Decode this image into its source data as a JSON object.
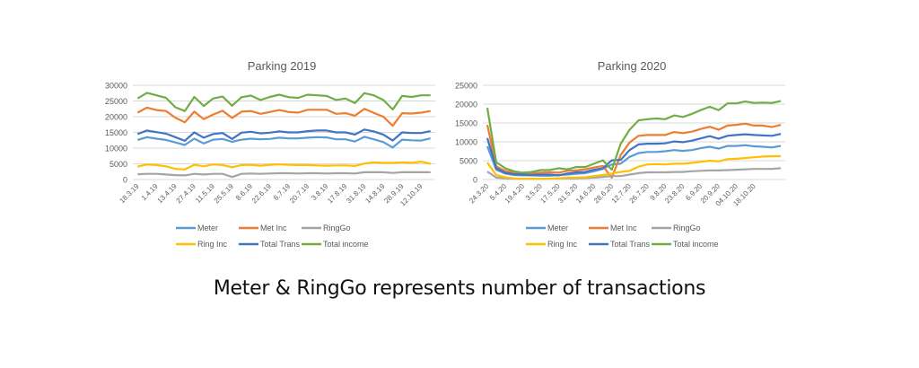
{
  "caption": "Meter & RingGo represents number of transactions",
  "legend_labels": [
    "Meter",
    "Met Inc",
    "RingGo",
    "Ring Inc",
    "Total Trans",
    "Total income"
  ],
  "chart_data": [
    {
      "type": "line",
      "title": "Parking 2019",
      "xlabel": "",
      "ylabel": "",
      "ylim": [
        0,
        30000
      ],
      "yticks": [
        0,
        5000,
        10000,
        15000,
        20000,
        25000,
        30000
      ],
      "grid": true,
      "legend": "bottom",
      "tick_labels": [
        "18.3.19",
        "1.4.19",
        "13.4.19",
        "27.4.19",
        "11.5.19",
        "25.5.19",
        "8.6.19",
        "22.6.19",
        "6.7.19",
        "20.7.19",
        "3.8.19",
        "17.8.19",
        "31.8.19",
        "14.8.19",
        "28.9.19",
        "12.10.19"
      ],
      "series": [
        {
          "name": "Meter",
          "color": "#5B9BD5",
          "values": [
            12600,
            13500,
            13000,
            12600,
            11800,
            11000,
            13000,
            11500,
            12700,
            12900,
            12000,
            12700,
            13000,
            12800,
            12900,
            13300,
            13100,
            13100,
            13300,
            13500,
            13400,
            12800,
            12800,
            12100,
            13600,
            12800,
            11900,
            10200,
            12700,
            12500,
            12400,
            13100
          ]
        },
        {
          "name": "Met Inc",
          "color": "#ED7D31",
          "values": [
            21300,
            22900,
            22100,
            21800,
            19700,
            18200,
            21600,
            19200,
            20700,
            21900,
            19600,
            21600,
            21800,
            20900,
            21500,
            22100,
            21500,
            21300,
            22200,
            22200,
            22200,
            20900,
            21100,
            20300,
            22500,
            21200,
            20000,
            17100,
            21100,
            21000,
            21300,
            21800
          ]
        },
        {
          "name": "RingGo",
          "color": "#A5A5A5",
          "values": [
            1700,
            1800,
            1800,
            1600,
            1400,
            1300,
            1800,
            1600,
            1800,
            1800,
            800,
            1800,
            1900,
            1800,
            1900,
            2000,
            2000,
            1900,
            2000,
            2000,
            1900,
            2000,
            2000,
            1900,
            2300,
            2300,
            2300,
            2100,
            2300,
            2300,
            2300,
            2300
          ]
        },
        {
          "name": "Ring Inc",
          "color": "#FFC000",
          "values": [
            4100,
            4800,
            4600,
            4200,
            3400,
            3200,
            4700,
            4200,
            4800,
            4600,
            3900,
            4600,
            4700,
            4400,
            4700,
            4800,
            4700,
            4600,
            4600,
            4500,
            4400,
            4500,
            4500,
            4300,
            5100,
            5500,
            5300,
            5300,
            5500,
            5300,
            5700,
            5000
          ]
        },
        {
          "name": "Total Trans",
          "color": "#4472C4",
          "values": [
            14500,
            15600,
            15100,
            14600,
            13500,
            12300,
            15000,
            13300,
            14500,
            14800,
            12900,
            14900,
            15200,
            14700,
            14900,
            15300,
            15000,
            15000,
            15400,
            15600,
            15600,
            15000,
            15000,
            14300,
            15900,
            15300,
            14300,
            12400,
            15000,
            14800,
            14800,
            15400
          ]
        },
        {
          "name": "Total income",
          "color": "#70AD47",
          "values": [
            25800,
            27600,
            26800,
            26000,
            23000,
            21800,
            26300,
            23400,
            25800,
            26400,
            23500,
            26200,
            26700,
            25300,
            26300,
            27000,
            26200,
            26000,
            27000,
            26800,
            26600,
            25300,
            25800,
            24300,
            27500,
            26800,
            25300,
            22300,
            26600,
            26300,
            26800,
            26800
          ]
        }
      ]
    },
    {
      "type": "line",
      "title": "Parking 2020",
      "xlabel": "",
      "ylabel": "",
      "ylim": [
        0,
        25000
      ],
      "yticks": [
        0,
        5000,
        10000,
        15000,
        20000,
        25000
      ],
      "grid": true,
      "legend": "bottom",
      "tick_labels": [
        "24.3.20",
        "5.4.20",
        "19.4.20",
        "3.5.20",
        "17.5.20",
        "31.5.20",
        "14.6.20",
        "28.6.20",
        "12.7.20",
        "26.7.20",
        "9.8.20",
        "23.8.20",
        "6.9.20",
        "20.9.20",
        "04.10.20",
        "18.10.20"
      ],
      "series": [
        {
          "name": "Meter",
          "color": "#5B9BD5",
          "values": [
            8800,
            2600,
            1600,
            1200,
            1100,
            1100,
            1000,
            1000,
            1200,
            1300,
            1500,
            1700,
            2200,
            2800,
            4000,
            4200,
            6000,
            7000,
            7300,
            7300,
            7500,
            7800,
            7600,
            7800,
            8300,
            8700,
            8200,
            8900,
            8900,
            9100,
            8800,
            8700,
            8500,
            8900
          ]
        },
        {
          "name": "Met Inc",
          "color": "#ED7D31",
          "values": [
            14500,
            3500,
            2300,
            1800,
            1500,
            1600,
            1800,
            1900,
            1800,
            2300,
            2400,
            2700,
            3200,
            3600,
            500,
            6500,
            9800,
            11600,
            11800,
            11800,
            11800,
            12600,
            12300,
            12700,
            13400,
            14000,
            13200,
            14300,
            14500,
            14800,
            14300,
            14300,
            13900,
            14500
          ]
        },
        {
          "name": "RingGo",
          "color": "#A5A5A5",
          "values": [
            2100,
            500,
            300,
            200,
            200,
            200,
            200,
            200,
            300,
            300,
            300,
            400,
            500,
            700,
            900,
            900,
            1300,
            1700,
            1900,
            1900,
            1900,
            2000,
            2000,
            2200,
            2300,
            2400,
            2400,
            2500,
            2600,
            2700,
            2800,
            2800,
            2800,
            3000
          ]
        },
        {
          "name": "Ring Inc",
          "color": "#FFC000",
          "values": [
            4500,
            1200,
            600,
            300,
            200,
            200,
            200,
            200,
            300,
            500,
            500,
            600,
            900,
            1200,
            1600,
            2000,
            2300,
            3400,
            4000,
            4100,
            4000,
            4200,
            4200,
            4400,
            4700,
            5000,
            4800,
            5400,
            5500,
            5700,
            5900,
            6100,
            6200,
            6200
          ]
        },
        {
          "name": "Total Trans",
          "color": "#4472C4",
          "values": [
            11000,
            3000,
            1800,
            1400,
            1300,
            1200,
            1300,
            1300,
            1100,
            1600,
            1900,
            2000,
            2600,
            3000,
            5100,
            5200,
            7800,
            9300,
            9500,
            9500,
            9600,
            10100,
            9900,
            10300,
            10900,
            11500,
            10800,
            11600,
            11800,
            12000,
            11800,
            11700,
            11600,
            12100
          ]
        },
        {
          "name": "Total income",
          "color": "#70AD47",
          "values": [
            19000,
            4600,
            3000,
            2200,
            1800,
            2000,
            2500,
            2500,
            3000,
            2700,
            3300,
            3300,
            4200,
            5100,
            2600,
            9500,
            13200,
            15700,
            16000,
            16200,
            16000,
            17000,
            16600,
            17400,
            18400,
            19300,
            18400,
            20200,
            20200,
            20700,
            20300,
            20400,
            20300,
            20800
          ]
        }
      ]
    }
  ]
}
